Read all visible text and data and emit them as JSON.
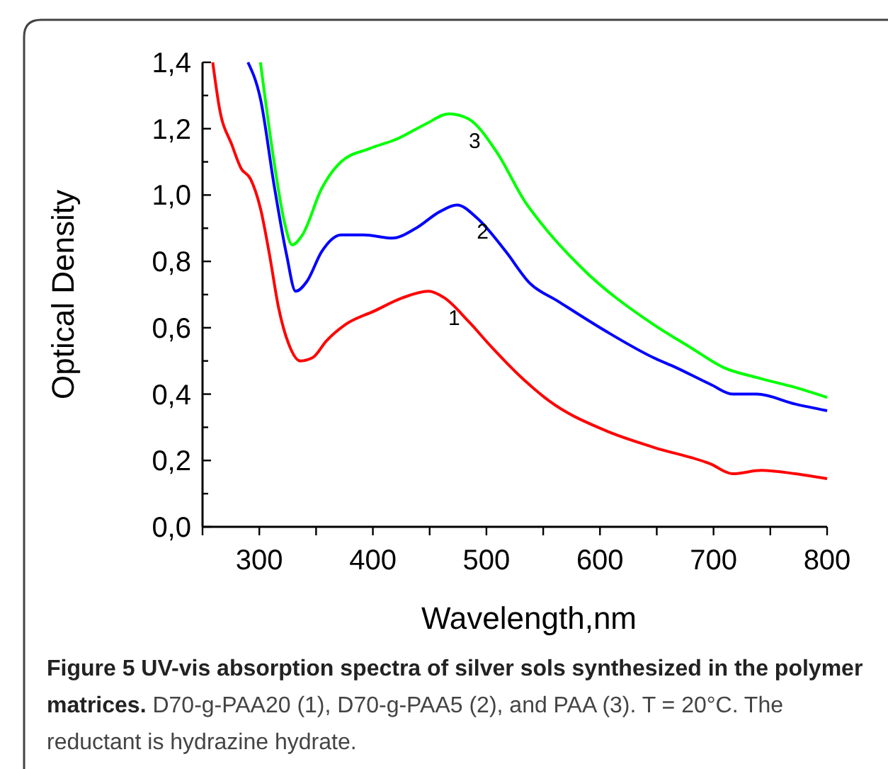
{
  "chart_data": {
    "type": "line",
    "title": "Figure 5 UV-vis absorption spectra of silver sols synthesized in the polymer matrices.",
    "annotations": [
      "D70-g-PAA20 (1), D70-g-PAA5 (2), and PAA (3). T = 20°C. The reductant is hydrazine hydrate."
    ],
    "xlabel": "Wavelength,nm",
    "ylabel": "Optical Density",
    "xlim": [
      250,
      800
    ],
    "ylim": [
      0,
      1.4
    ],
    "xticks": [
      {
        "value": 250,
        "label": null
      },
      300,
      {
        "value": 350,
        "label": null
      },
      400,
      {
        "value": 450,
        "label": null
      },
      500,
      {
        "value": 550,
        "label": null
      },
      600,
      {
        "value": 650,
        "label": null
      },
      700,
      {
        "value": 750,
        "label": null
      },
      800
    ],
    "yticks": [
      {
        "value": 0,
        "label": "0,0"
      },
      {
        "value": 0.1,
        "label": null
      },
      {
        "value": 0.2,
        "label": "0,2"
      },
      {
        "value": 0.3,
        "label": null
      },
      {
        "value": 0.4,
        "label": "0,4"
      },
      {
        "value": 0.5,
        "label": null
      },
      {
        "value": 0.6,
        "label": "0,6"
      },
      {
        "value": 0.7,
        "label": null
      },
      {
        "value": 0.8,
        "label": "0,8"
      },
      {
        "value": 0.9,
        "label": null
      },
      {
        "value": 1.0,
        "label": "1,0"
      },
      {
        "value": 1.1,
        "label": null
      },
      {
        "value": 1.2,
        "label": "1,2"
      },
      {
        "value": 1.3,
        "label": null
      },
      {
        "value": 1.4,
        "label": "1,4"
      }
    ],
    "grid": false,
    "legend": false,
    "marker": "none",
    "line_style": "solid",
    "series": [
      {
        "name": "1",
        "color": "#ff0000",
        "x": [
          259,
          265,
          276,
          284,
          292,
          301,
          309,
          317,
          326,
          336,
          347,
          359,
          376,
          401,
          426,
          449,
          463,
          484,
          505,
          534,
          555,
          605,
          647,
          697,
          717,
          742,
          772,
          800
        ],
        "values": [
          1.4,
          1.26,
          1.15,
          1.08,
          1.05,
          0.96,
          0.82,
          0.66,
          0.55,
          0.5,
          0.51,
          0.56,
          0.61,
          0.65,
          0.69,
          0.71,
          0.69,
          0.62,
          0.54,
          0.44,
          0.38,
          0.29,
          0.24,
          0.19,
          0.16,
          0.17,
          0.16,
          0.145
        ]
      },
      {
        "name": "2",
        "color": "#0000ff",
        "x": [
          290,
          301,
          313,
          324,
          332,
          342,
          355,
          372,
          392,
          417,
          438,
          459,
          474,
          492,
          517,
          538,
          563,
          605,
          647,
          667,
          697,
          717,
          738,
          772,
          800
        ],
        "values": [
          1.4,
          1.29,
          1.03,
          0.82,
          0.71,
          0.74,
          0.83,
          0.88,
          0.88,
          0.87,
          0.9,
          0.95,
          0.97,
          0.93,
          0.83,
          0.735,
          0.68,
          0.59,
          0.51,
          0.48,
          0.43,
          0.4,
          0.4,
          0.37,
          0.35
        ]
      },
      {
        "name": "3",
        "color": "#00ff00",
        "x": [
          301,
          313,
          322,
          329,
          338,
          355,
          372,
          397,
          422,
          447,
          467,
          484,
          509,
          534,
          547,
          584,
          647,
          680,
          709,
          738,
          772,
          800
        ],
        "values": [
          1.4,
          1.1,
          0.92,
          0.85,
          0.88,
          1.02,
          1.1,
          1.14,
          1.17,
          1.215,
          1.245,
          1.23,
          1.13,
          0.98,
          0.92,
          0.78,
          0.61,
          0.54,
          0.48,
          0.45,
          0.42,
          0.39
        ]
      }
    ]
  }
}
